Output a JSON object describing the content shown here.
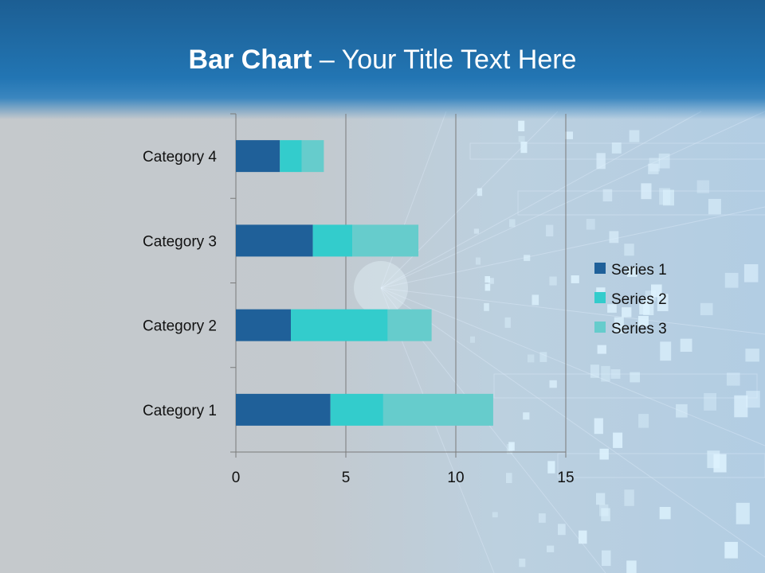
{
  "slide": {
    "title_bold": "Bar Chart",
    "title_rest": " – Your Title Text Here"
  },
  "colors": {
    "series": [
      "#1f6099",
      "#33cccc",
      "#66cccc"
    ],
    "grid": "#7a7a7a",
    "title": "#ffffff"
  },
  "chart_data": {
    "type": "bar",
    "orientation": "horizontal",
    "stacked": true,
    "categories": [
      "Category 1",
      "Category 2",
      "Category 3",
      "Category 4"
    ],
    "series": [
      {
        "name": "Series 1",
        "values": [
          4.3,
          2.5,
          3.5,
          2.0
        ]
      },
      {
        "name": "Series 2",
        "values": [
          2.4,
          4.4,
          1.8,
          1.0
        ]
      },
      {
        "name": "Series 3",
        "values": [
          5.0,
          2.0,
          3.0,
          1.0
        ]
      }
    ],
    "xlim": [
      0,
      15
    ],
    "xticks": [
      0,
      5,
      10,
      15
    ],
    "grid": true,
    "legend": "right"
  }
}
